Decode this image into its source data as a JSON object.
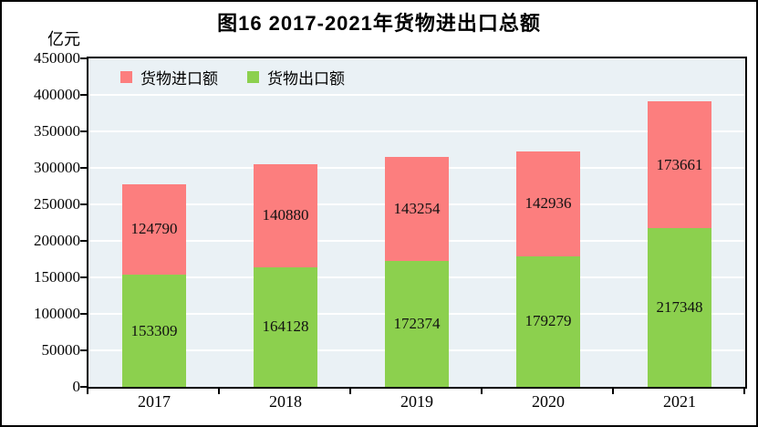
{
  "chart_data": {
    "type": "bar",
    "stacked": true,
    "title": "图16  2017-2021年货物进出口总额",
    "ylabel": "亿元",
    "categories": [
      "2017",
      "2018",
      "2019",
      "2020",
      "2021"
    ],
    "series": [
      {
        "name": "货物出口额",
        "color": "#8CD04E",
        "values": [
          153309,
          164128,
          172374,
          179279,
          217348
        ]
      },
      {
        "name": "货物进口额",
        "color": "#FC7E7E",
        "values": [
          124790,
          140880,
          143254,
          142936,
          173661
        ]
      }
    ],
    "legend_series_order": [
      1,
      0
    ],
    "legend_position": "top-left-inside",
    "ylim": [
      0,
      450000
    ],
    "ytick_step": 50000,
    "y_tick_labels": [
      "0",
      "50000",
      "100000",
      "150000",
      "200000",
      "250000",
      "300000",
      "350000",
      "400000",
      "450000"
    ],
    "grid": "horizontal-white",
    "plot_bg": "#EAF1F5"
  }
}
